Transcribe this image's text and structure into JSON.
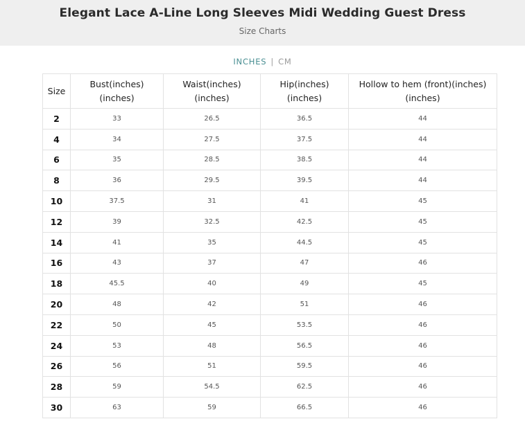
{
  "header": {
    "title": "Elegant Lace A-Line Long Sleeves Midi Wedding Guest Dress",
    "subtitle": "Size Charts"
  },
  "units": {
    "active": "INCHES",
    "separator": "|",
    "inactive": "CM"
  },
  "table": {
    "columns": [
      {
        "line1": "Size",
        "line2": ""
      },
      {
        "line1": "Bust(inches)",
        "line2": "(inches)"
      },
      {
        "line1": "Waist(inches)",
        "line2": "(inches)"
      },
      {
        "line1": "Hip(inches)",
        "line2": "(inches)"
      },
      {
        "line1": "Hollow to hem (front)(inches)",
        "line2": "(inches)"
      }
    ],
    "rows": [
      [
        "2",
        "33",
        "26.5",
        "36.5",
        "44"
      ],
      [
        "4",
        "34",
        "27.5",
        "37.5",
        "44"
      ],
      [
        "6",
        "35",
        "28.5",
        "38.5",
        "44"
      ],
      [
        "8",
        "36",
        "29.5",
        "39.5",
        "44"
      ],
      [
        "10",
        "37.5",
        "31",
        "41",
        "45"
      ],
      [
        "12",
        "39",
        "32.5",
        "42.5",
        "45"
      ],
      [
        "14",
        "41",
        "35",
        "44.5",
        "45"
      ],
      [
        "16",
        "43",
        "37",
        "47",
        "46"
      ],
      [
        "18",
        "45.5",
        "40",
        "49",
        "45"
      ],
      [
        "20",
        "48",
        "42",
        "51",
        "46"
      ],
      [
        "22",
        "50",
        "45",
        "53.5",
        "46"
      ],
      [
        "24",
        "53",
        "48",
        "56.5",
        "46"
      ],
      [
        "26",
        "56",
        "51",
        "59.5",
        "46"
      ],
      [
        "28",
        "59",
        "54.5",
        "62.5",
        "46"
      ],
      [
        "30",
        "63",
        "59",
        "66.5",
        "46"
      ]
    ]
  },
  "colors": {
    "header_bg": "#efefef",
    "active_unit": "#4a8f93",
    "inactive_unit": "#9a9a9a",
    "grid_border": "#e2e2e2"
  }
}
